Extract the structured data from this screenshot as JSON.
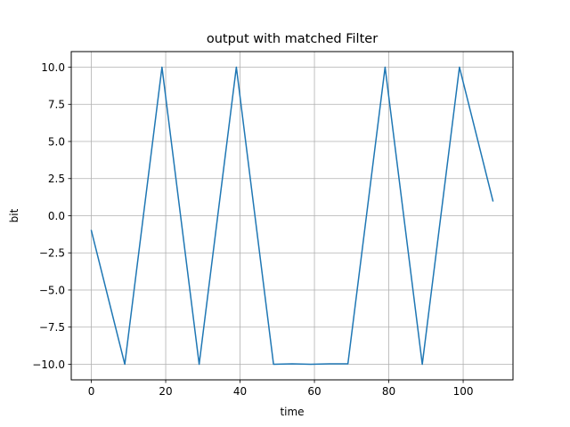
{
  "chart_data": {
    "type": "line",
    "title": "output with matched Filter",
    "xlabel": "time",
    "ylabel": "bit",
    "xlim": [
      -5.4,
      113.4
    ],
    "ylim": [
      -11.05,
      11.05
    ],
    "xticks": [
      0,
      20,
      40,
      60,
      80,
      100
    ],
    "xtick_labels": [
      "0",
      "20",
      "40",
      "60",
      "80",
      "100"
    ],
    "yticks": [
      -10,
      -7.5,
      -5,
      -2.5,
      0,
      2.5,
      5,
      7.5,
      10
    ],
    "ytick_labels": [
      "−10.0",
      "−7.5",
      "−5.0",
      "−2.5",
      "0.0",
      "2.5",
      "5.0",
      "7.5",
      "10.0"
    ],
    "grid": true,
    "color": "#1f77b4",
    "series": [
      {
        "x": [
          0,
          9,
          19,
          29,
          39,
          49,
          54,
          59,
          64,
          69,
          79,
          89,
          99,
          108
        ],
        "y": [
          -1,
          -10,
          10,
          -10,
          10,
          -10,
          -9.97,
          -10,
          -9.97,
          -9.97,
          10,
          -10,
          10,
          1
        ]
      }
    ]
  }
}
